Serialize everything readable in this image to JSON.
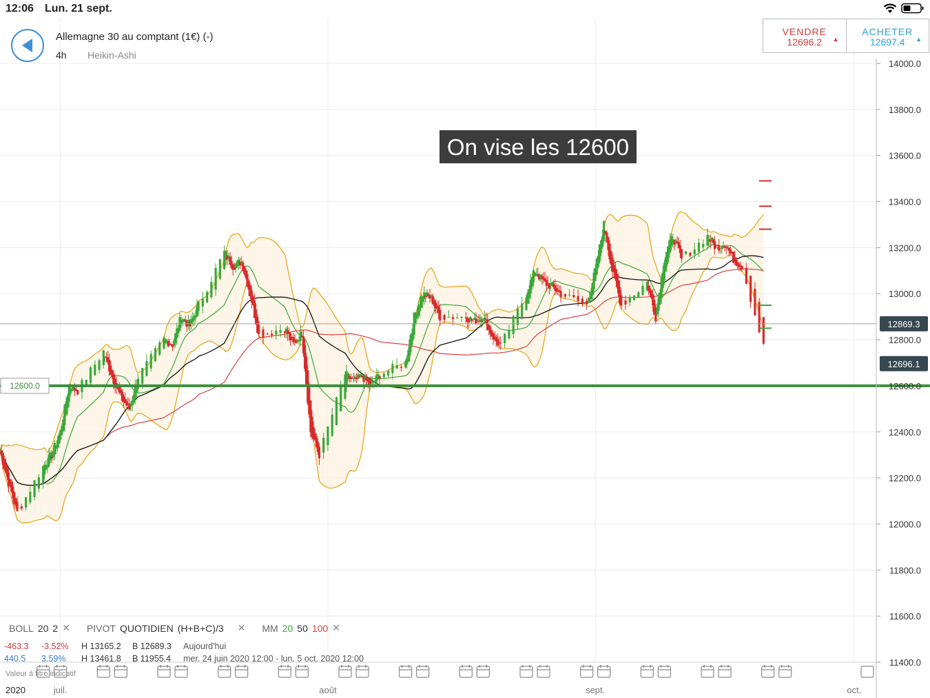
{
  "status": {
    "time": "12:06",
    "date": "Lun. 21 sept.",
    "icons": [
      "wifi-icon",
      "battery-icon"
    ]
  },
  "header": {
    "instrument": "Allemagne 30 au comptant (1€) (-)",
    "timeframe": "4h",
    "chart_type": "Heikin-Ashi"
  },
  "trade": {
    "sell_label": "VENDRE",
    "sell_price": "12696.2",
    "buy_label": "ACHETER",
    "buy_price": "12697.4"
  },
  "annotation": {
    "text": "On vise les 12600"
  },
  "level_line": {
    "label": "12600.0",
    "value": 12600,
    "color": "#3b8f3b"
  },
  "price_markers": {
    "current_line": "12869.3",
    "current_value": 12869.3,
    "last_price": "12696.1",
    "last_value": 12696.1
  },
  "indicators": {
    "boll": {
      "name": "BOLL",
      "period": "20",
      "dev": "2"
    },
    "pivot": {
      "name": "PIVOT",
      "type": "QUOTIDIEN",
      "formula": "(H+B+C)/3"
    },
    "mm": {
      "name": "MM",
      "p1": "20",
      "p2": "50",
      "p3": "100"
    },
    "row1": {
      "change": "-463.3",
      "pct": "-3.52%",
      "high": "H 13165.2",
      "low": "B 12689.3",
      "period": "Aujourd'hui"
    },
    "row2": {
      "change": "440.5",
      "pct": "3.59%",
      "high": "H 13461.8",
      "low": "B 11955.4",
      "period": "mer. 24 juin 2020 12:00 - lun. 5 oct. 2020 12:00"
    }
  },
  "legend_note": "Valeur à titre indicatif",
  "chart_data": {
    "type": "candlestick",
    "y_ticks": [
      "14000.0",
      "13800.0",
      "13600.0",
      "13400.0",
      "13200.0",
      "13000.0",
      "12800.0",
      "12600.0",
      "12400.0",
      "12200.0",
      "12000.0",
      "11800.0",
      "11600.0",
      "11400.0"
    ],
    "ylim": [
      11400,
      14000
    ],
    "x_labels": [
      {
        "label": "2020",
        "date": "2020-06-24"
      },
      {
        "label": "juil.",
        "date": "2020-07-01"
      },
      {
        "label": "août",
        "date": "2020-08-01"
      },
      {
        "label": "sept.",
        "date": "2020-09-01"
      },
      {
        "label": "oct.",
        "date": "2020-10-01"
      }
    ],
    "x_range": [
      "2020-06-24",
      "2020-10-05"
    ],
    "colors": {
      "up": "#3aa83a",
      "down": "#d92b2b",
      "boll": "#e8a81e",
      "mm20": "#3aa83a",
      "mm50": "#111111",
      "mm100": "#d94040"
    },
    "close_path": [
      [
        "2020-06-24",
        12320
      ],
      [
        "2020-06-25",
        12180
      ],
      [
        "2020-06-26",
        12050
      ],
      [
        "2020-06-29",
        12250
      ],
      [
        "2020-06-30",
        12300
      ],
      [
        "2020-07-01",
        12400
      ],
      [
        "2020-07-02",
        12600
      ],
      [
        "2020-07-03",
        12580
      ],
      [
        "2020-07-06",
        12750
      ],
      [
        "2020-07-07",
        12640
      ],
      [
        "2020-07-08",
        12550
      ],
      [
        "2020-07-09",
        12500
      ],
      [
        "2020-07-10",
        12640
      ],
      [
        "2020-07-13",
        12800
      ],
      [
        "2020-07-14",
        12780
      ],
      [
        "2020-07-15",
        12900
      ],
      [
        "2020-07-16",
        12860
      ],
      [
        "2020-07-17",
        12950
      ],
      [
        "2020-07-20",
        13180
      ],
      [
        "2020-07-21",
        13120
      ],
      [
        "2020-07-22",
        13140
      ],
      [
        "2020-07-23",
        13000
      ],
      [
        "2020-07-24",
        12820
      ],
      [
        "2020-07-27",
        12850
      ],
      [
        "2020-07-28",
        12780
      ],
      [
        "2020-07-29",
        12830
      ],
      [
        "2020-07-30",
        12400
      ],
      [
        "2020-07-31",
        12300
      ],
      [
        "2020-08-03",
        12650
      ],
      [
        "2020-08-04",
        12620
      ],
      [
        "2020-08-05",
        12640
      ],
      [
        "2020-08-06",
        12600
      ],
      [
        "2020-08-07",
        12650
      ],
      [
        "2020-08-10",
        12700
      ],
      [
        "2020-08-11",
        12900
      ],
      [
        "2020-08-12",
        13000
      ],
      [
        "2020-08-13",
        12980
      ],
      [
        "2020-08-14",
        12900
      ],
      [
        "2020-08-17",
        12900
      ],
      [
        "2020-08-18",
        12880
      ],
      [
        "2020-08-19",
        12900
      ],
      [
        "2020-08-20",
        12820
      ],
      [
        "2020-08-21",
        12770
      ],
      [
        "2020-08-24",
        13000
      ],
      [
        "2020-08-25",
        13100
      ],
      [
        "2020-08-26",
        13050
      ],
      [
        "2020-08-27",
        13030
      ],
      [
        "2020-08-28",
        13000
      ],
      [
        "2020-08-31",
        12950
      ],
      [
        "2020-09-01",
        13100
      ],
      [
        "2020-09-02",
        13300
      ],
      [
        "2020-09-03",
        13100
      ],
      [
        "2020-09-04",
        12950
      ],
      [
        "2020-09-07",
        13050
      ],
      [
        "2020-09-08",
        12900
      ],
      [
        "2020-09-09",
        13150
      ],
      [
        "2020-09-10",
        13250
      ],
      [
        "2020-09-11",
        13150
      ],
      [
        "2020-09-14",
        13250
      ],
      [
        "2020-09-15",
        13200
      ],
      [
        "2020-09-16",
        13220
      ],
      [
        "2020-09-17",
        13150
      ],
      [
        "2020-09-18",
        13120
      ],
      [
        "2020-09-21",
        12700
      ]
    ]
  }
}
